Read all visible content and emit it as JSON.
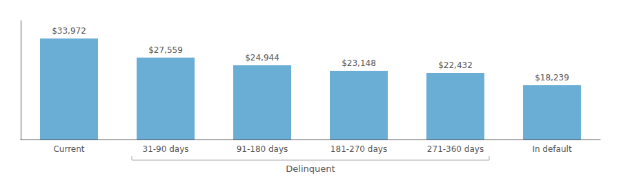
{
  "chart_data": {
    "type": "bar",
    "categories": [
      "Current",
      "31-90 days",
      "91-180 days",
      "181-270 days",
      "271-360 days",
      "In default"
    ],
    "values": [
      33972,
      27559,
      24944,
      23148,
      22432,
      18239
    ],
    "value_labels": [
      "$33,972",
      "$27,559",
      "$24,944",
      "$23,148",
      "$22,432",
      "$18,239"
    ],
    "data_labels": true,
    "color": "#6aaed6",
    "ylim": [
      0,
      40000
    ],
    "grid": false,
    "tick_labels": "x",
    "annotations": [
      {
        "text": "Delinquent",
        "from": "31-90 days",
        "to": "271-360 days"
      }
    ]
  }
}
